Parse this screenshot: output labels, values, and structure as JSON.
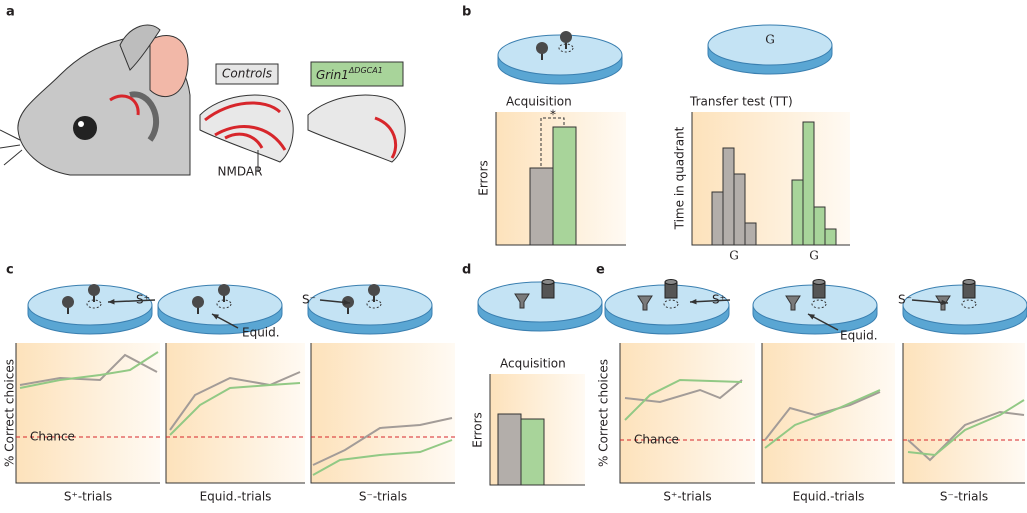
{
  "panel_a": {
    "label": "a",
    "controls": "Controls",
    "mutant_gene": "Grin1",
    "mutant_superscript": "ΔDGCA1",
    "nmdar": "NMDAR"
  },
  "panel_b": {
    "label": "b",
    "dish_marker": "G",
    "acquisition_title": "Acquisition",
    "acquisition_y_label": "Errors",
    "significance": "*",
    "transfer_title": "Transfer test (TT)",
    "transfer_y_label": "Time in quadrant",
    "transfer_x_labels": [
      "G",
      "G"
    ]
  },
  "panel_c": {
    "label": "c",
    "dish_labels": [
      "S⁺",
      "Equid.",
      "S⁻"
    ],
    "y_label": "% Correct choices",
    "chance": "Chance",
    "x_labels": [
      "S⁺-trials",
      "Equid.-trials",
      "S⁻-trials"
    ]
  },
  "panel_d": {
    "label": "d",
    "title": "Acquisition",
    "y_label": "Errors"
  },
  "panel_e": {
    "label": "e",
    "dish_labels": [
      "S⁺",
      "Equid.",
      "S⁻"
    ],
    "y_label": "% Correct choices",
    "chance": "Chance",
    "x_labels": [
      "S⁺-trials",
      "Equid.-trials",
      "S⁻-trials"
    ]
  }
}
